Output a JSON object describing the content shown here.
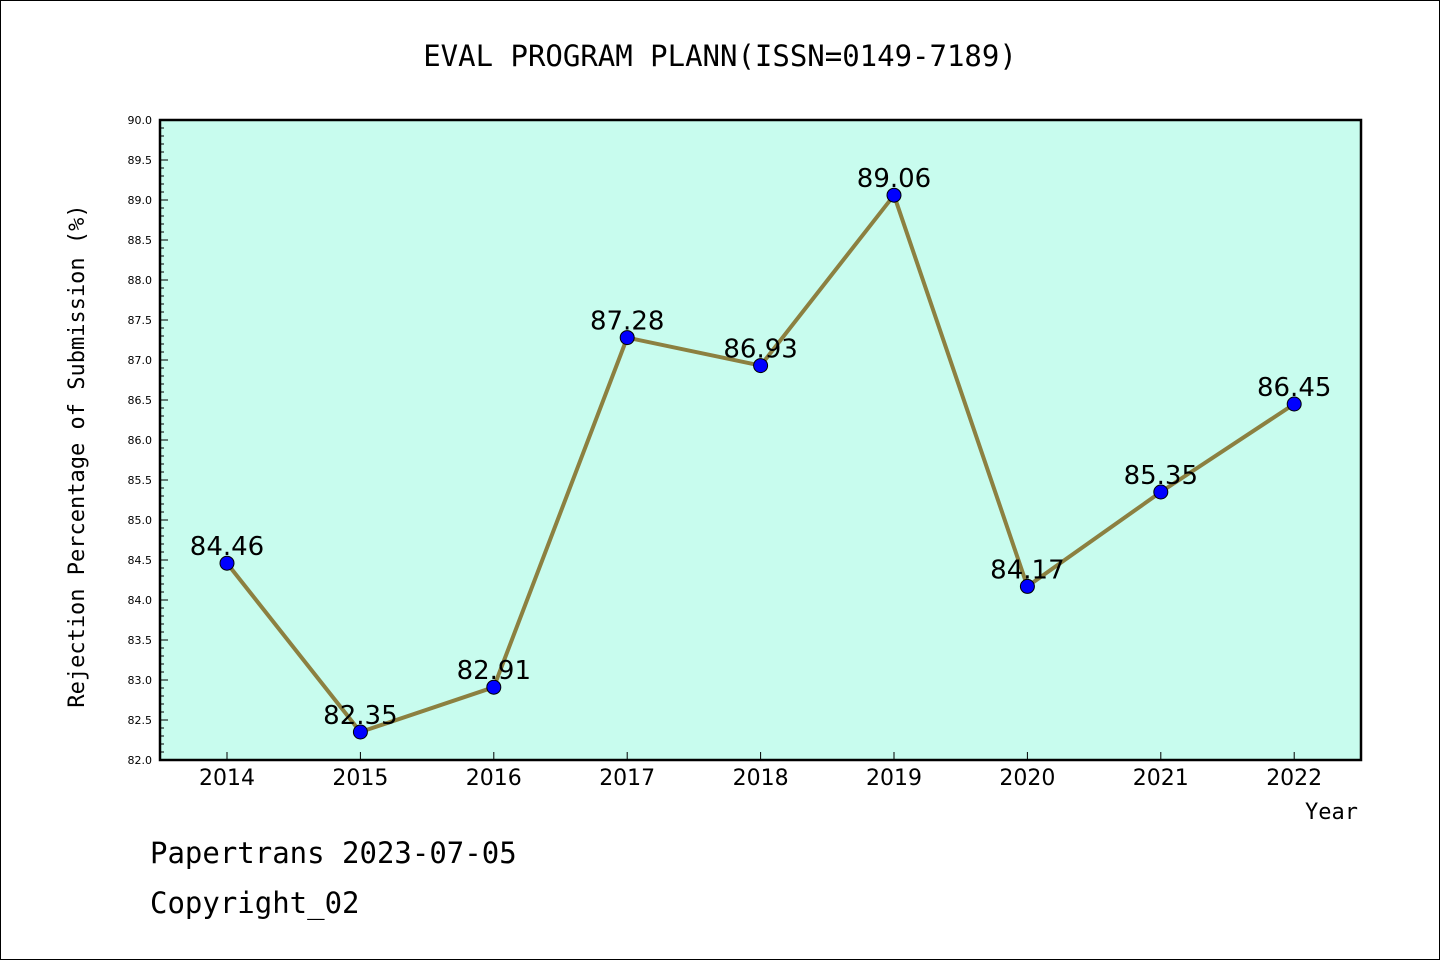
{
  "chart_data": {
    "type": "line",
    "title": "EVAL PROGRAM PLANN(ISSN=0149-7189)",
    "xlabel": "Year",
    "ylabel": "Rejection Percentage of Submission (%)",
    "categories": [
      "2014",
      "2015",
      "2016",
      "2017",
      "2018",
      "2019",
      "2020",
      "2021",
      "2022"
    ],
    "values": [
      84.46,
      82.35,
      82.91,
      87.28,
      86.93,
      89.06,
      84.17,
      85.35,
      86.45
    ],
    "value_labels": [
      "84.46",
      "82.35",
      "82.91",
      "87.28",
      "86.93",
      "89.06",
      "84.17",
      "85.35",
      "86.45"
    ],
    "ylim": [
      82.0,
      90.0
    ],
    "yticks": [
      "82.0",
      "82.5",
      "83.0",
      "83.5",
      "84.0",
      "84.5",
      "85.0",
      "85.5",
      "86.0",
      "86.5",
      "87.0",
      "87.5",
      "88.0",
      "88.5",
      "89.0",
      "89.5",
      "90.0"
    ],
    "colors": {
      "plot_background": "#c8fcee",
      "line": "#8c8040",
      "marker": "#0000ff"
    }
  },
  "footer": {
    "line1": "Papertrans 2023-07-05",
    "line2": "Copyright_02"
  }
}
